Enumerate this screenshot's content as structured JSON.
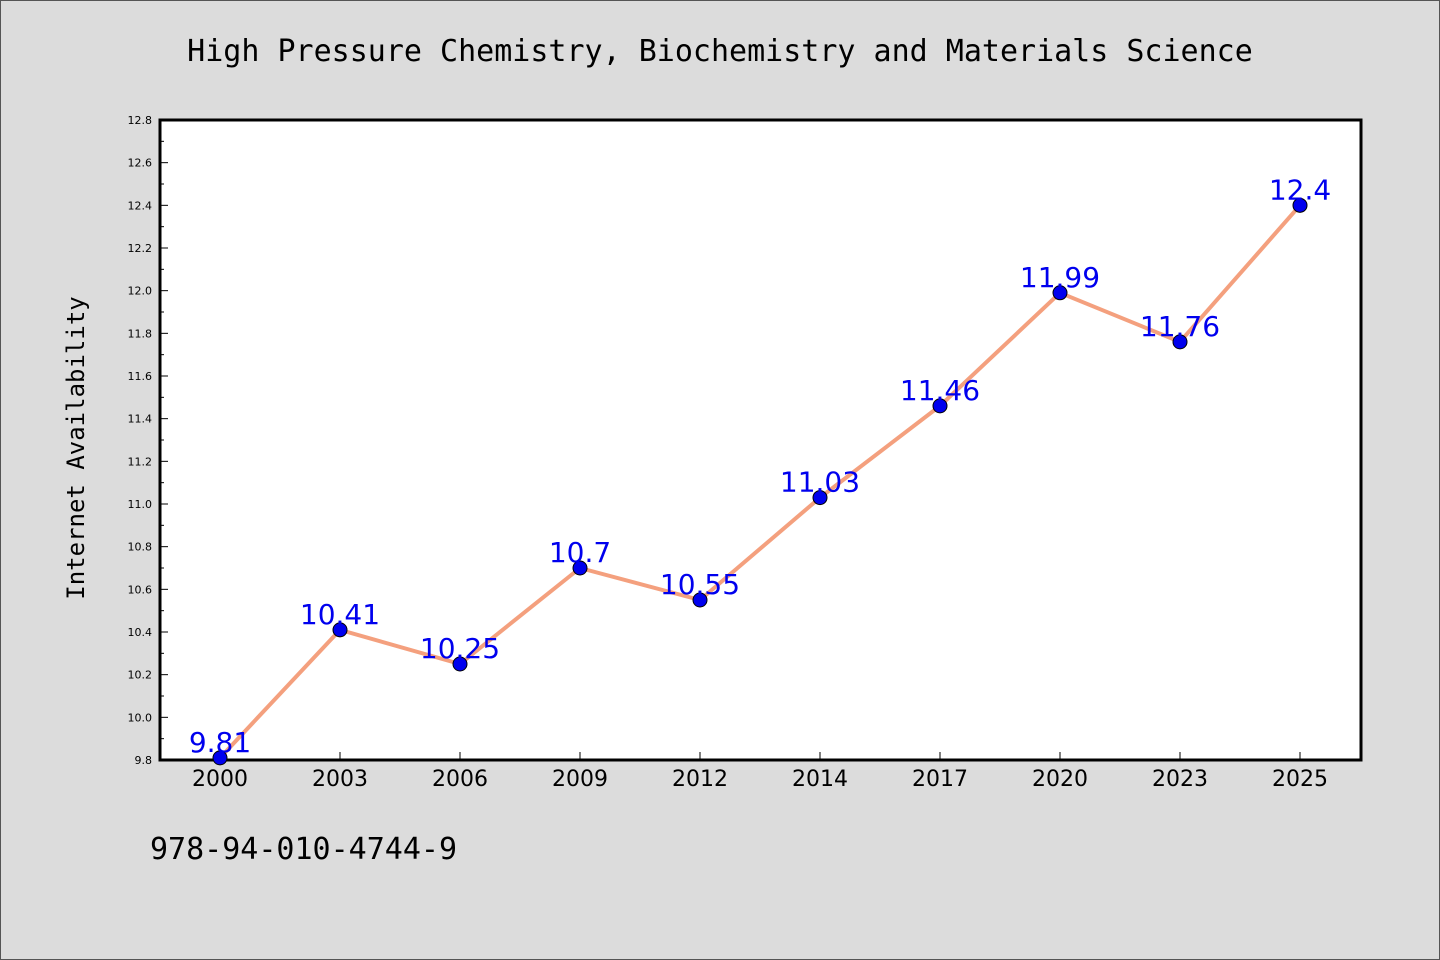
{
  "chart_data": {
    "type": "line",
    "title": "High Pressure Chemistry, Biochemistry and Materials Science",
    "xlabel": "",
    "ylabel": "Internet Availability",
    "categories": [
      "2000",
      "2003",
      "2006",
      "2009",
      "2012",
      "2014",
      "2017",
      "2020",
      "2023",
      "2025"
    ],
    "series": [
      {
        "values": [
          9.81,
          10.41,
          10.25,
          10.7,
          10.55,
          11.03,
          11.46,
          11.99,
          11.76,
          12.4
        ],
        "labels": [
          "9.81",
          "10.41",
          "10.25",
          "10.7",
          "10.55",
          "11.03",
          "11.46",
          "11.99",
          "11.76",
          "12.4"
        ],
        "line_color": "#f4a07e",
        "marker_color": "#0000ee",
        "label_color": "#0000ee"
      }
    ],
    "ylim": [
      9.8,
      12.8
    ],
    "yticks": [
      "9.8",
      "10.0",
      "10.2",
      "10.4",
      "10.6",
      "10.8",
      "11.0",
      "11.2",
      "11.4",
      "11.6",
      "11.8",
      "12.0",
      "12.2",
      "12.4",
      "12.6",
      "12.8"
    ],
    "grid": false,
    "legend": "none"
  },
  "footer": {
    "isbn": "978-94-010-4744-9"
  }
}
